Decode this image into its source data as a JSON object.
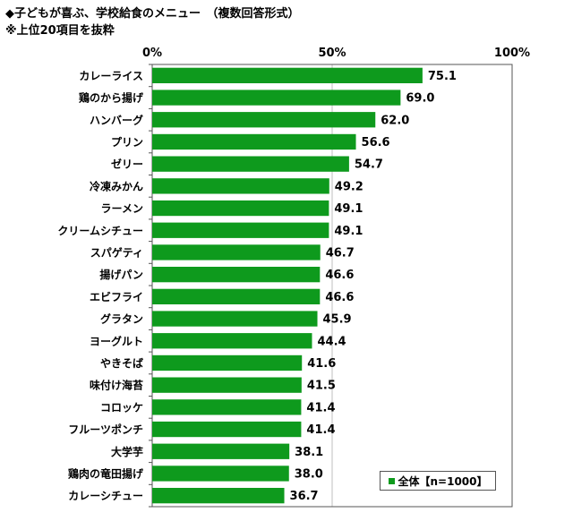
{
  "title": "◆子どもが喜ぶ、学校給食のメニュー　（複数回答形式）",
  "subtitle": "※上位20項目を抜粋",
  "colors": {
    "bar": "#0e9a1d",
    "grid": "#bfbfbf",
    "axis": "#555555"
  },
  "legend_label": "全体【n=1000】",
  "chart_data": {
    "type": "bar",
    "orientation": "horizontal",
    "xlim": [
      0,
      100
    ],
    "xticks": [
      "0%",
      "50%",
      "100%"
    ],
    "categories": [
      "カレーライス",
      "鶏のから揚げ",
      "ハンバーグ",
      "プリン",
      "ゼリー",
      "冷凍みかん",
      "ラーメン",
      "クリームシチュー",
      "スパゲティ",
      "揚げパン",
      "エビフライ",
      "グラタン",
      "ヨーグルト",
      "やきそば",
      "味付け海苔",
      "コロッケ",
      "フルーツポンチ",
      "大学芋",
      "鶏肉の竜田揚げ",
      "カレーシチュー"
    ],
    "series": [
      {
        "name": "全体【n=1000】",
        "values": [
          75.1,
          69.0,
          62.0,
          56.6,
          54.7,
          49.2,
          49.1,
          49.1,
          46.7,
          46.6,
          46.6,
          45.9,
          44.4,
          41.6,
          41.5,
          41.4,
          41.4,
          38.1,
          38.0,
          36.7
        ]
      }
    ],
    "grid": true,
    "legend_position": "bottom-right"
  }
}
